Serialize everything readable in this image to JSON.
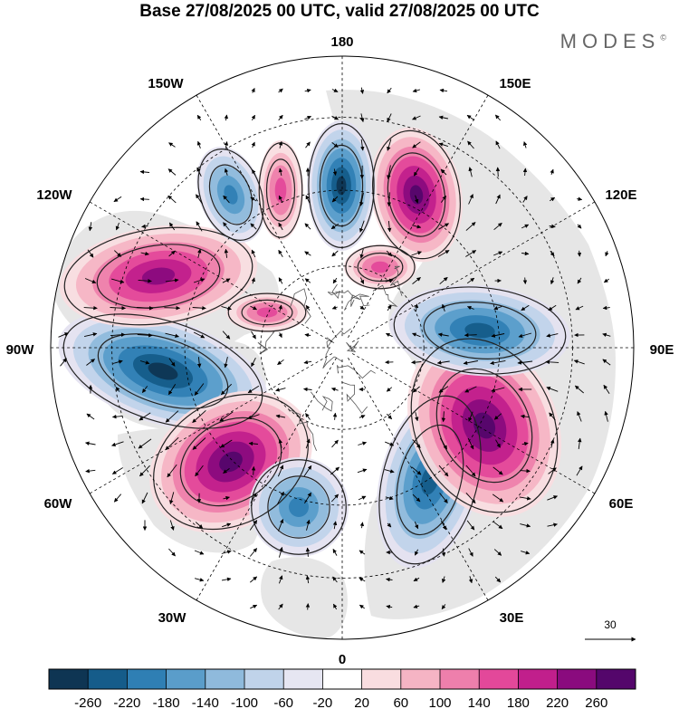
{
  "title": "Base 27/08/2025 00 UTC, valid 27/08/2025 00 UTC",
  "brand": "MODES",
  "brand_mark": "©",
  "longitude_labels": {
    "lon_180": "180",
    "lon_150e": "150E",
    "lon_120e": "120E",
    "lon_90e": "90E",
    "lon_60e": "60E",
    "lon_30e": "30E",
    "lon_0": "0",
    "lon_30w": "30W",
    "lon_60w": "60W",
    "lon_90w": "90W",
    "lon_120w": "120W",
    "lon_150w": "150W"
  },
  "reference_vector_label": "30",
  "colorbar": {
    "levels": [
      "-260",
      "-220",
      "-180",
      "-140",
      "-100",
      "-60",
      "-20",
      "20",
      "60",
      "100",
      "140",
      "180",
      "220",
      "260"
    ],
    "colors": [
      "#0e3553",
      "#155c8a",
      "#2f7fb4",
      "#5a9dca",
      "#8fbadc",
      "#c0d3ea",
      "#e6e6f2",
      "#ffffff",
      "#f9dde0",
      "#f5b4c4",
      "#ee7fac",
      "#e3489a",
      "#c11f8c",
      "#8a0b7e",
      "#54066b"
    ]
  },
  "anomaly_colors": {
    "land": "#e6e6e6",
    "neg_weak": "#e4e2f0",
    "neg_light": "#c0d3ea",
    "neg_mid": "#8fbadc",
    "neg_strong": "#5a9dca",
    "neg_deep": "#2f7fb4",
    "neg_core": "#155c8a",
    "neg_max": "#0e3553",
    "pos_weak": "#f9dde0",
    "pos_light": "#f5b4c4",
    "pos_mid": "#ee7fac",
    "pos_strong": "#e3489a",
    "pos_deep": "#c11f8c",
    "pos_max": "#8a0b7e",
    "pos_core": "#54066b"
  }
}
